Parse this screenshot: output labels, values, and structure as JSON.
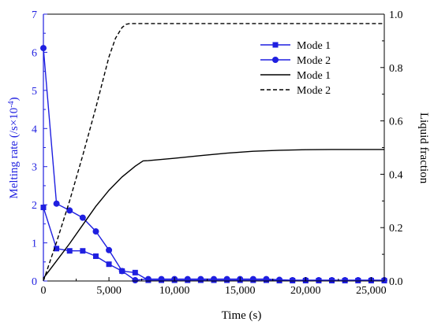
{
  "chart_data": {
    "type": "line",
    "xlabel": "Time (s)",
    "ylabel_left": "Melting rate (/s×10⁻⁴)",
    "ylabel_right": "Liquid fraction",
    "xlim": [
      0,
      26000
    ],
    "ylim_left": [
      0,
      7
    ],
    "ylim_right": [
      0,
      1.0
    ],
    "x_ticks": [
      0,
      5000,
      10000,
      15000,
      20000,
      25000
    ],
    "x_tick_labels": [
      "0",
      "5,000",
      "10,000",
      "15,000",
      "20,000",
      "25,000"
    ],
    "y_left_ticks": [
      0,
      1,
      2,
      3,
      4,
      5,
      6,
      7
    ],
    "y_left_tick_labels": [
      "0",
      "1",
      "2",
      "3",
      "4",
      "5",
      "6",
      "7"
    ],
    "y_right_ticks": [
      0,
      0.2,
      0.4,
      0.6,
      0.8,
      1.0
    ],
    "y_right_tick_labels": [
      "0.0",
      "0.2",
      "0.4",
      "0.6",
      "0.8",
      "1.0"
    ],
    "legend_position": "top-right",
    "grid": false,
    "colors": {
      "blue": "#1f1fe0",
      "black": "#000000"
    },
    "series": [
      {
        "name": "Mode 1",
        "axis": "left",
        "color": "#1f1fe0",
        "marker": "square",
        "x": [
          0,
          1000,
          2000,
          3000,
          4000,
          5000,
          6000,
          7000,
          8000,
          9000,
          10000,
          11000,
          12000,
          13000,
          14000,
          15000,
          16000,
          17000,
          18000,
          19000,
          20000,
          21000,
          22000,
          23000,
          24000,
          25000,
          26000
        ],
        "values": [
          1.93,
          0.85,
          0.79,
          0.79,
          0.65,
          0.44,
          0.26,
          0.22,
          0.02,
          0.02,
          0.02,
          0.02,
          0.02,
          0.02,
          0.02,
          0.02,
          0.02,
          0.02,
          0.01,
          0.01,
          0.01,
          0.01,
          0.01,
          0.01,
          0.01,
          0.01,
          0.01
        ]
      },
      {
        "name": "Mode 2",
        "axis": "left",
        "color": "#1f1fe0",
        "marker": "circle",
        "x": [
          0,
          1000,
          2000,
          3000,
          4000,
          5000,
          6000,
          7000,
          8000,
          9000,
          10000,
          11000,
          12000,
          13000,
          14000,
          15000,
          16000,
          17000,
          18000,
          19000,
          20000,
          21000,
          22000,
          23000,
          24000,
          25000,
          26000
        ],
        "values": [
          6.11,
          2.03,
          1.85,
          1.66,
          1.3,
          0.81,
          0.26,
          0.02,
          0.05,
          0.05,
          0.05,
          0.05,
          0.05,
          0.05,
          0.05,
          0.05,
          0.05,
          0.05,
          0.03,
          0.02,
          0.02,
          0.02,
          0.02,
          0.02,
          0.02,
          0.02,
          0.02
        ]
      },
      {
        "name": "Mode 1",
        "axis": "right",
        "color": "#000000",
        "linestyle": "solid",
        "x": [
          0,
          1000,
          2000,
          3000,
          4000,
          5000,
          6000,
          7000,
          7600,
          8000,
          10000,
          12000,
          14000,
          16000,
          18000,
          20000,
          22000,
          24000,
          26000
        ],
        "values": [
          0.01,
          0.075,
          0.14,
          0.21,
          0.28,
          0.34,
          0.39,
          0.43,
          0.45,
          0.451,
          0.46,
          0.47,
          0.479,
          0.486,
          0.49,
          0.492,
          0.493,
          0.493,
          0.493
        ]
      },
      {
        "name": "Mode 2",
        "axis": "right",
        "color": "#000000",
        "linestyle": "dashed",
        "x": [
          0,
          1000,
          2000,
          3000,
          4000,
          5000,
          5500,
          6000,
          6300,
          6600,
          7000,
          8000,
          10000,
          15000,
          20000,
          25000,
          26000
        ],
        "values": [
          0.0,
          0.145,
          0.3,
          0.47,
          0.65,
          0.84,
          0.91,
          0.95,
          0.962,
          0.965,
          0.965,
          0.965,
          0.965,
          0.965,
          0.965,
          0.965,
          0.965
        ]
      }
    ]
  }
}
